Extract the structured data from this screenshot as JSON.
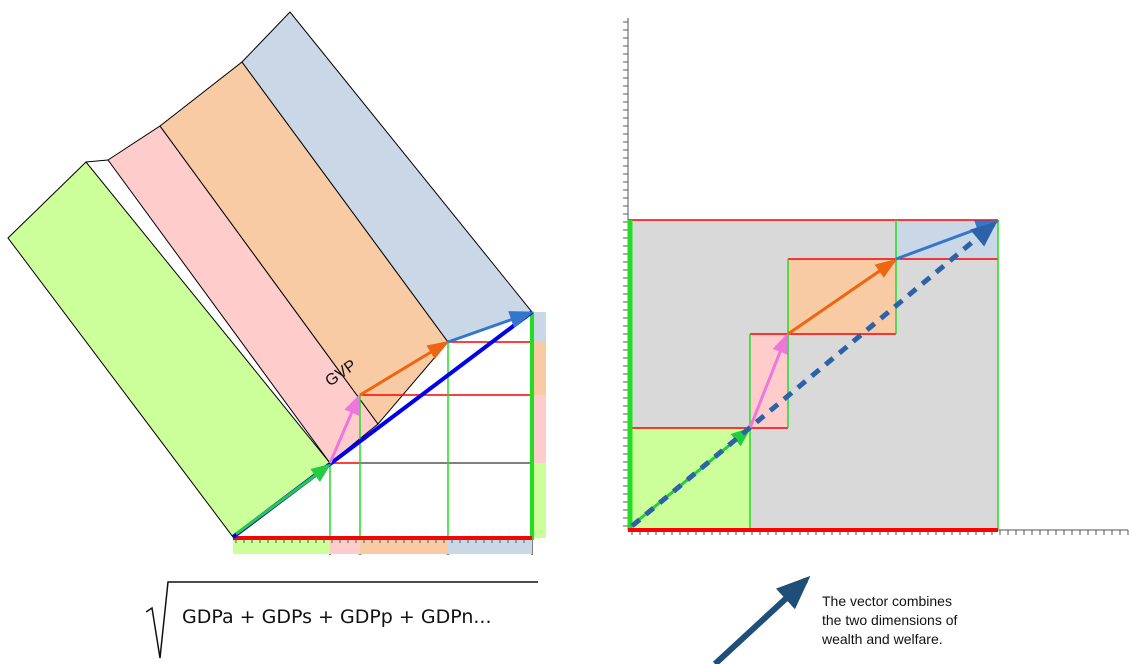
{
  "left_diagram": {
    "label": "GVP",
    "band_colors": {
      "agriculture": "#ccff99",
      "services": "#ffcccc",
      "production": "#f8cba5",
      "natural": "#c9d7e6"
    }
  },
  "formula": {
    "expression": "GDPa + GDPs + GDPp + GDPn..."
  },
  "note": {
    "lines": [
      "The vector combines",
      "the two dimensions of",
      "wealth and welfare."
    ]
  },
  "colors": {
    "green_vector": "#22cc44",
    "pink_vector": "#ee77dd",
    "orange_vector": "#ee6611",
    "blue_vector": "#3377cc",
    "resultant": "#2e62a8",
    "axis_x": "#ff0000",
    "axis_y": "#22dd22",
    "grey_area": "#d9d9d9",
    "big_arrow": "#1f4e79"
  }
}
